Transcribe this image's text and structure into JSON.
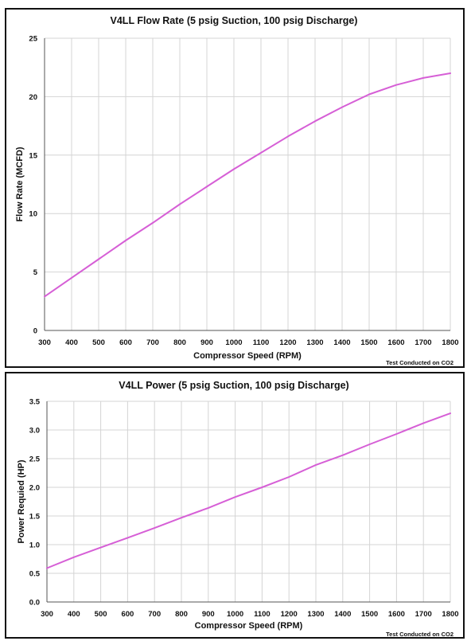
{
  "chart_data": [
    {
      "type": "line",
      "title": "V4LL Flow Rate (5 psig Suction, 100 psig Discharge)",
      "xlabel": "Compressor Speed (RPM)",
      "ylabel": "Flow Rate (MCFD)",
      "note": "Test Conducted on CO2",
      "xlim": [
        300,
        1800
      ],
      "ylim": [
        0,
        25
      ],
      "xticks": [
        300,
        400,
        500,
        600,
        700,
        800,
        900,
        1000,
        1100,
        1200,
        1300,
        1400,
        1500,
        1600,
        1700,
        1800
      ],
      "yticks": [
        0,
        5,
        10,
        15,
        20,
        25
      ],
      "ytick_labels": [
        "0",
        "5",
        "10",
        "15",
        "20",
        "25"
      ],
      "grid": true,
      "color": "#d65fd6",
      "series": [
        {
          "x": [
            300,
            400,
            500,
            600,
            700,
            800,
            900,
            1000,
            1100,
            1200,
            1300,
            1400,
            1500,
            1600,
            1700,
            1800
          ],
          "y": [
            2.9,
            4.5,
            6.1,
            7.7,
            9.2,
            10.8,
            12.3,
            13.8,
            15.2,
            16.6,
            17.9,
            19.1,
            20.2,
            21.0,
            21.6,
            22.0
          ]
        }
      ]
    },
    {
      "type": "line",
      "title": "V4LL Power (5 psig Suction, 100 psig Discharge)",
      "xlabel": "Compressor Speed (RPM)",
      "ylabel": "Power Requied (HP)",
      "note": "Test Conducted on CO2",
      "xlim": [
        300,
        1800
      ],
      "ylim": [
        0,
        3.5
      ],
      "xticks": [
        300,
        400,
        500,
        600,
        700,
        800,
        900,
        1000,
        1100,
        1200,
        1300,
        1400,
        1500,
        1600,
        1700,
        1800
      ],
      "yticks": [
        0,
        0.5,
        1,
        1.5,
        2,
        2.5,
        3,
        3.5
      ],
      "ytick_labels": [
        "0.0",
        "0.5",
        "1.0",
        "1.5",
        "2.0",
        "2.5",
        "3.0",
        "3.5"
      ],
      "grid": true,
      "color": "#d65fd6",
      "series": [
        {
          "x": [
            300,
            400,
            500,
            600,
            700,
            800,
            900,
            1000,
            1100,
            1200,
            1300,
            1400,
            1500,
            1600,
            1700,
            1800
          ],
          "y": [
            0.59,
            0.78,
            0.95,
            1.12,
            1.29,
            1.47,
            1.64,
            1.83,
            2.0,
            2.18,
            2.39,
            2.56,
            2.75,
            2.93,
            3.12,
            3.29
          ]
        }
      ]
    }
  ]
}
